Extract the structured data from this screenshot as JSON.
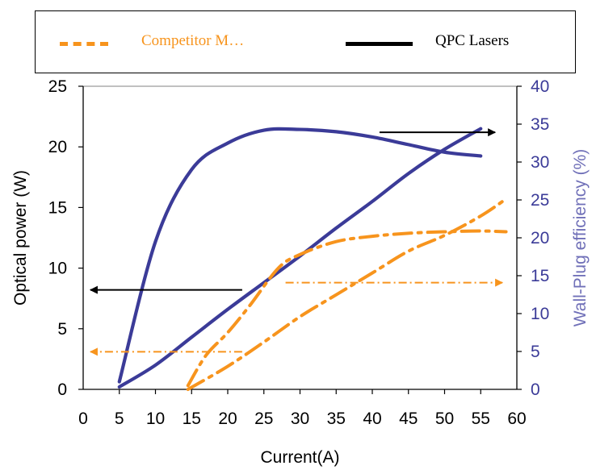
{
  "chart_data": {
    "type": "line",
    "title": "",
    "xlabel": "Current(A)",
    "ylabel_left": "Optical power (W)",
    "ylabel_right": "Wall-Plug efficiency (%)",
    "xlim": [
      0,
      60
    ],
    "ylim_left": [
      0,
      25
    ],
    "ylim_right": [
      0,
      40
    ],
    "x_ticks": [
      "0",
      "5",
      "10",
      "15",
      "20",
      "25",
      "30",
      "35",
      "40",
      "45",
      "50",
      "55",
      "60"
    ],
    "y_left_ticks": [
      "0",
      "5",
      "10",
      "15",
      "20",
      "25"
    ],
    "y_right_ticks": [
      "0",
      "5",
      "10",
      "15",
      "20",
      "25",
      "30",
      "35",
      "40"
    ],
    "grid": "top border line only",
    "legend_position": "top",
    "legend": [
      {
        "label": "Competitor M…",
        "color": "#F7941D",
        "style": "dash-dot"
      },
      {
        "label": "QPC Lasers",
        "color": "#000000",
        "style": "solid"
      }
    ],
    "series": [
      {
        "name": "QPC Lasers",
        "axis": "left",
        "color": "#3B3B98",
        "x": [
          5,
          10,
          15,
          20,
          25,
          30,
          35,
          40,
          45,
          50,
          55
        ],
        "y": [
          0.2,
          2.0,
          4.3,
          6.6,
          8.8,
          11.0,
          13.3,
          15.5,
          17.8,
          19.8,
          21.5
        ]
      },
      {
        "name": "QPC Lasers",
        "axis": "right",
        "color": "#3B3B98",
        "x": [
          5,
          10,
          15,
          20,
          25,
          30,
          35,
          40,
          45,
          50,
          55
        ],
        "y": [
          1.0,
          19.5,
          29.0,
          32.5,
          34.2,
          34.3,
          34.0,
          33.3,
          32.3,
          31.3,
          30.8
        ]
      },
      {
        "name": "Competitor M…",
        "axis": "left",
        "color": "#F7941D",
        "x": [
          14.5,
          20,
          25,
          30,
          35,
          40,
          45,
          50,
          55,
          58.5
        ],
        "y": [
          0.0,
          1.9,
          3.9,
          6.0,
          7.8,
          9.6,
          11.4,
          12.7,
          14.3,
          15.7
        ]
      },
      {
        "name": "Competitor M…",
        "axis": "right",
        "color": "#F7941D",
        "x": [
          14.5,
          17,
          20,
          23,
          27,
          30,
          35,
          40,
          45,
          50,
          55,
          58.5
        ],
        "y": [
          0.5,
          4.5,
          7.5,
          11.0,
          16.0,
          17.8,
          19.5,
          20.2,
          20.6,
          20.8,
          20.9,
          20.8
        ]
      }
    ],
    "annotations": [
      {
        "type": "arrow",
        "color": "#000000",
        "style": "solid",
        "from": [
          22,
          8.2
        ],
        "to": [
          1,
          8.2
        ],
        "axis": "left",
        "meaning": "QPC power curve reads on left axis"
      },
      {
        "type": "arrow",
        "color": "#000000",
        "style": "solid",
        "from": [
          41,
          21.2
        ],
        "to": [
          57,
          21.2
        ],
        "axis": "left",
        "meaning": "QPC efficiency curve reads on right axis"
      },
      {
        "type": "arrow",
        "color": "#F7941D",
        "style": "dash-dot",
        "from": [
          22,
          3.1
        ],
        "to": [
          1,
          3.1
        ],
        "axis": "left",
        "meaning": "Competitor power curve reads on left axis"
      },
      {
        "type": "arrow",
        "color": "#F7941D",
        "style": "dash-dot",
        "from": [
          28,
          8.8
        ],
        "to": [
          58,
          8.8
        ],
        "axis": "left",
        "meaning": "Competitor efficiency curve reads on right axis"
      }
    ]
  }
}
